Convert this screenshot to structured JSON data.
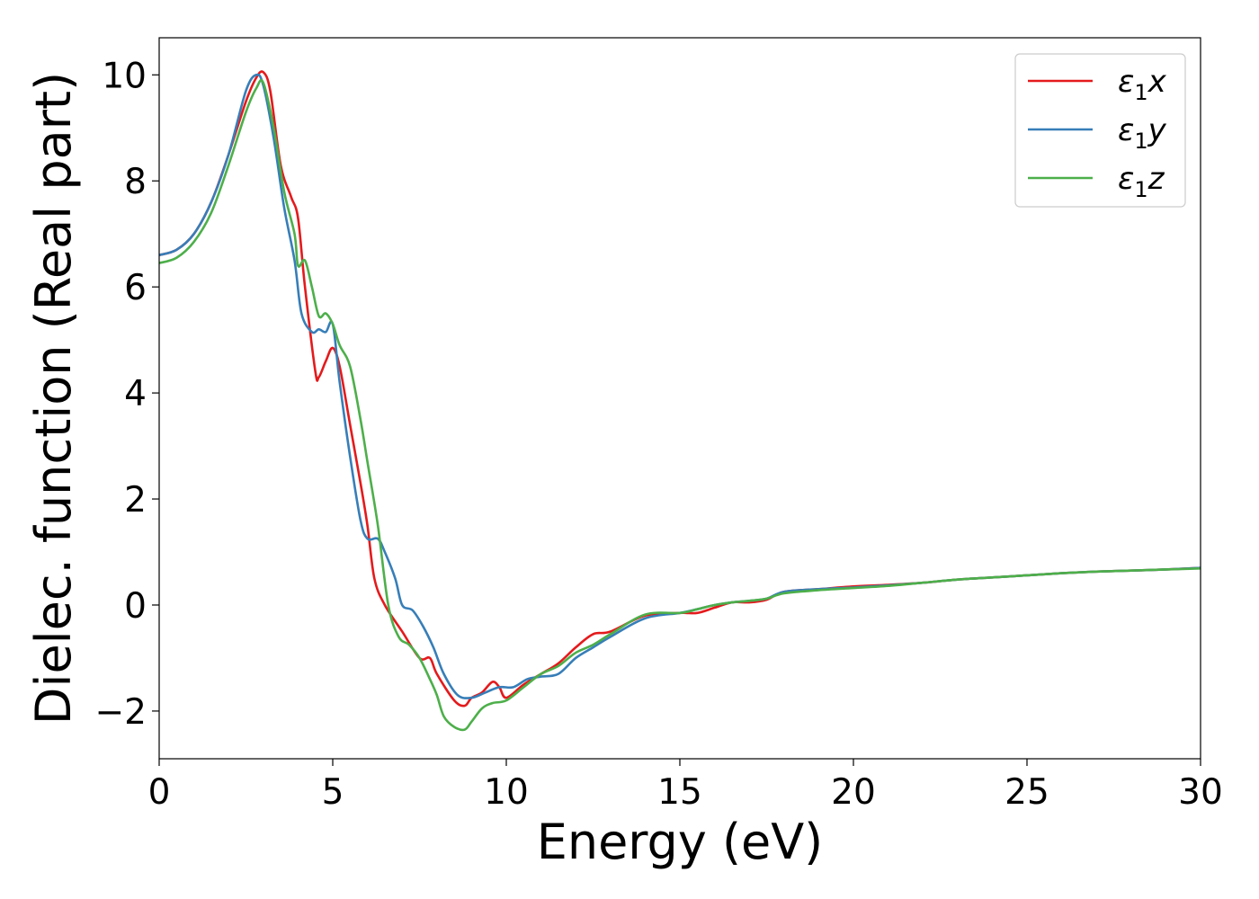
{
  "chart_data": {
    "type": "line",
    "title": "",
    "xlabel": "Energy (eV)",
    "ylabel": "Dielec. function (Real part)",
    "xlim": [
      0,
      30
    ],
    "ylim": [
      -2.9,
      10.7
    ],
    "xticks": [
      0,
      5,
      10,
      15,
      20,
      25,
      30
    ],
    "xtick_labels": [
      "0",
      "5",
      "10",
      "15",
      "20",
      "25",
      "30"
    ],
    "yticks": [
      -2,
      0,
      2,
      4,
      6,
      8,
      10
    ],
    "ytick_labels": [
      "−2",
      "0",
      "2",
      "4",
      "6",
      "8",
      "10"
    ],
    "grid": false,
    "legend_position": "top-right",
    "series": [
      {
        "name": "ε₁x",
        "legend_base": "ε",
        "legend_sub": "1",
        "legend_var": "x",
        "color": "#e41a1c",
        "x": [
          0,
          0.5,
          1.0,
          1.5,
          2.0,
          2.5,
          2.8,
          3.0,
          3.2,
          3.5,
          3.8,
          4.0,
          4.2,
          4.5,
          4.6,
          4.8,
          5.0,
          5.2,
          5.5,
          5.8,
          6.0,
          6.2,
          6.5,
          7.0,
          7.5,
          7.8,
          8.0,
          8.5,
          8.8,
          9.0,
          9.3,
          9.6,
          9.8,
          10.0,
          10.5,
          11.0,
          11.5,
          12.0,
          12.5,
          13.0,
          14.0,
          15.0,
          15.5,
          16.0,
          16.5,
          17.0,
          17.5,
          18.0,
          19.0,
          20.0,
          21.0,
          22.0,
          23.0,
          24.0,
          25.0,
          26.0,
          27.0,
          28.0,
          29.0,
          30.0
        ],
        "y": [
          6.6,
          6.7,
          7.0,
          7.6,
          8.5,
          9.5,
          9.95,
          10.05,
          9.7,
          8.3,
          7.7,
          7.3,
          6.0,
          4.4,
          4.3,
          4.6,
          4.85,
          4.5,
          3.4,
          2.3,
          1.5,
          0.5,
          0.0,
          -0.5,
          -1.0,
          -1.0,
          -1.3,
          -1.8,
          -1.9,
          -1.75,
          -1.65,
          -1.45,
          -1.55,
          -1.75,
          -1.5,
          -1.3,
          -1.1,
          -0.8,
          -0.55,
          -0.5,
          -0.2,
          -0.15,
          -0.15,
          -0.05,
          0.05,
          0.05,
          0.1,
          0.25,
          0.3,
          0.35,
          0.38,
          0.42,
          0.48,
          0.52,
          0.56,
          0.6,
          0.63,
          0.65,
          0.67,
          0.7
        ]
      },
      {
        "name": "ε₁y",
        "legend_base": "ε",
        "legend_sub": "1",
        "legend_var": "y",
        "color": "#377eb8",
        "x": [
          0,
          0.5,
          1.0,
          1.5,
          2.0,
          2.5,
          2.8,
          3.0,
          3.3,
          3.6,
          3.9,
          4.1,
          4.4,
          4.6,
          4.8,
          5.0,
          5.2,
          5.5,
          5.8,
          6.0,
          6.3,
          6.5,
          6.8,
          7.0,
          7.3,
          7.6,
          7.9,
          8.2,
          8.6,
          9.0,
          9.4,
          9.8,
          10.2,
          10.6,
          11.0,
          11.5,
          12.0,
          12.5,
          13.0,
          14.0,
          15.0,
          15.5,
          16.0,
          16.5,
          17.0,
          17.5,
          18.0,
          19.0,
          20.0,
          21.0,
          22.0,
          23.0,
          24.0,
          25.0,
          26.0,
          27.0,
          28.0,
          29.0,
          30.0
        ],
        "y": [
          6.6,
          6.7,
          7.0,
          7.6,
          8.5,
          9.7,
          10.0,
          9.8,
          8.8,
          7.5,
          6.5,
          5.5,
          5.15,
          5.2,
          5.15,
          5.3,
          4.2,
          2.8,
          1.6,
          1.25,
          1.25,
          1.0,
          0.5,
          0.0,
          -0.1,
          -0.4,
          -0.8,
          -1.3,
          -1.7,
          -1.75,
          -1.65,
          -1.55,
          -1.55,
          -1.4,
          -1.35,
          -1.3,
          -1.0,
          -0.8,
          -0.6,
          -0.25,
          -0.15,
          -0.08,
          0.0,
          0.05,
          0.08,
          0.12,
          0.25,
          0.3,
          0.33,
          0.37,
          0.42,
          0.48,
          0.52,
          0.56,
          0.6,
          0.63,
          0.65,
          0.67,
          0.7
        ]
      },
      {
        "name": "ε₁z",
        "legend_base": "ε",
        "legend_sub": "1",
        "legend_var": "z",
        "color": "#4daf4a",
        "x": [
          0,
          0.5,
          1.0,
          1.5,
          2.0,
          2.5,
          2.8,
          3.0,
          3.3,
          3.6,
          3.9,
          4.0,
          4.2,
          4.4,
          4.6,
          4.8,
          5.0,
          5.2,
          5.5,
          5.8,
          6.0,
          6.3,
          6.6,
          6.9,
          7.2,
          7.5,
          7.8,
          8.0,
          8.2,
          8.5,
          8.8,
          9.0,
          9.3,
          9.6,
          10.0,
          10.5,
          11.0,
          11.5,
          12.0,
          12.5,
          13.0,
          14.0,
          15.0,
          15.5,
          16.0,
          16.5,
          17.0,
          17.5,
          18.0,
          19.0,
          20.0,
          21.0,
          22.0,
          23.0,
          24.0,
          25.0,
          26.0,
          27.0,
          28.0,
          29.0,
          30.0
        ],
        "y": [
          6.45,
          6.55,
          6.85,
          7.4,
          8.3,
          9.3,
          9.75,
          9.85,
          9.0,
          7.8,
          7.0,
          6.4,
          6.5,
          6.0,
          5.45,
          5.5,
          5.3,
          4.9,
          4.5,
          3.5,
          2.7,
          1.5,
          0.0,
          -0.6,
          -0.75,
          -1.0,
          -1.4,
          -1.7,
          -2.1,
          -2.3,
          -2.35,
          -2.2,
          -1.95,
          -1.85,
          -1.8,
          -1.55,
          -1.3,
          -1.15,
          -0.9,
          -0.75,
          -0.55,
          -0.18,
          -0.15,
          -0.08,
          0.0,
          0.05,
          0.08,
          0.12,
          0.22,
          0.28,
          0.32,
          0.36,
          0.42,
          0.48,
          0.52,
          0.56,
          0.6,
          0.63,
          0.65,
          0.67,
          0.69
        ]
      }
    ]
  }
}
